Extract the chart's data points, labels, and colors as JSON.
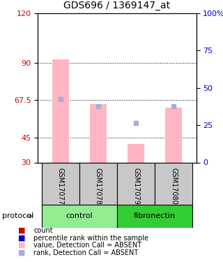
{
  "title": "GDS696 / 1369147_at",
  "samples": [
    "GSM17077",
    "GSM17078",
    "GSM17079",
    "GSM17080"
  ],
  "groups": [
    {
      "label": "control",
      "color": "#90EE90",
      "samples": [
        0,
        1
      ]
    },
    {
      "label": "fibronectin",
      "color": "#32CD32",
      "samples": [
        2,
        3
      ]
    }
  ],
  "pink_bar_tops": [
    92,
    65,
    41,
    63
  ],
  "pink_bar_bottom": 30,
  "blue_marker_values": [
    68,
    64,
    54,
    64
  ],
  "ylim_left": [
    30,
    120
  ],
  "yticks_left": [
    30,
    45,
    67.5,
    90,
    120
  ],
  "ytick_labels_left": [
    "30",
    "45",
    "67.5",
    "90",
    "120"
  ],
  "ytick_labels_right": [
    "0",
    "25",
    "50",
    "75",
    "100%"
  ],
  "left_axis_color": "#CC0000",
  "right_axis_color": "#0000CC",
  "grid_values": [
    45,
    67.5,
    90
  ],
  "bar_width": 0.45,
  "pink_bar_color": "#FFB6C1",
  "blue_marker_color": "#AAAADD",
  "legend_items": [
    {
      "color": "#CC0000",
      "label": "count"
    },
    {
      "color": "#0000CC",
      "label": "percentile rank within the sample"
    },
    {
      "color": "#FFB6C1",
      "label": "value, Detection Call = ABSENT"
    },
    {
      "color": "#AAAADD",
      "label": "rank, Detection Call = ABSENT"
    }
  ],
  "protocol_label": "protocol",
  "sample_box_color": "#C8C8C8",
  "group_colors": [
    "#90EE90",
    "#32CD32"
  ]
}
